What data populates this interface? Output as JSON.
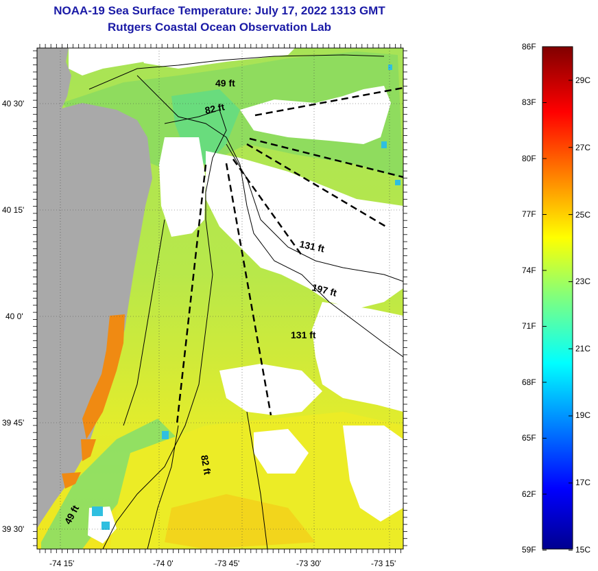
{
  "header": {
    "title": "NOAA-19 Sea Surface Temperature:  July 17, 2022 1313 GMT",
    "subtitle": "Rutgers Coastal Ocean Observation Lab"
  },
  "map": {
    "lon_labels": [
      "-74 15'",
      "-74 0'",
      "-73 45'",
      "-73 30'",
      "-73 15'"
    ],
    "lat_labels": [
      "40 30'",
      "40 15'",
      "40 0'",
      "39 45'",
      "39 30'"
    ],
    "depth_labels": [
      "49 ft",
      "82 ft",
      "131 ft",
      "197 ft",
      "131 ft",
      "82 ft",
      "49 ft"
    ],
    "colors": {
      "land": "#a9a9a9",
      "cloud": "#ffffff",
      "ocean_green": "#9fe35a",
      "ocean_yellow": "#e6ee2a",
      "ocean_teal": "#52e08a",
      "ocean_orange": "#f08a12",
      "cyan": "#3ec8e8"
    }
  },
  "colorbar": {
    "f_labels": [
      "86F",
      "83F",
      "80F",
      "77F",
      "74F",
      "71F",
      "68F",
      "65F",
      "62F",
      "59F"
    ],
    "c_labels": [
      "29C",
      "27C",
      "25C",
      "23C",
      "21C",
      "19C",
      "17C",
      "15C"
    ],
    "range_f": [
      59,
      86
    ],
    "range_c": [
      15,
      30
    ],
    "colormap": "jet"
  }
}
